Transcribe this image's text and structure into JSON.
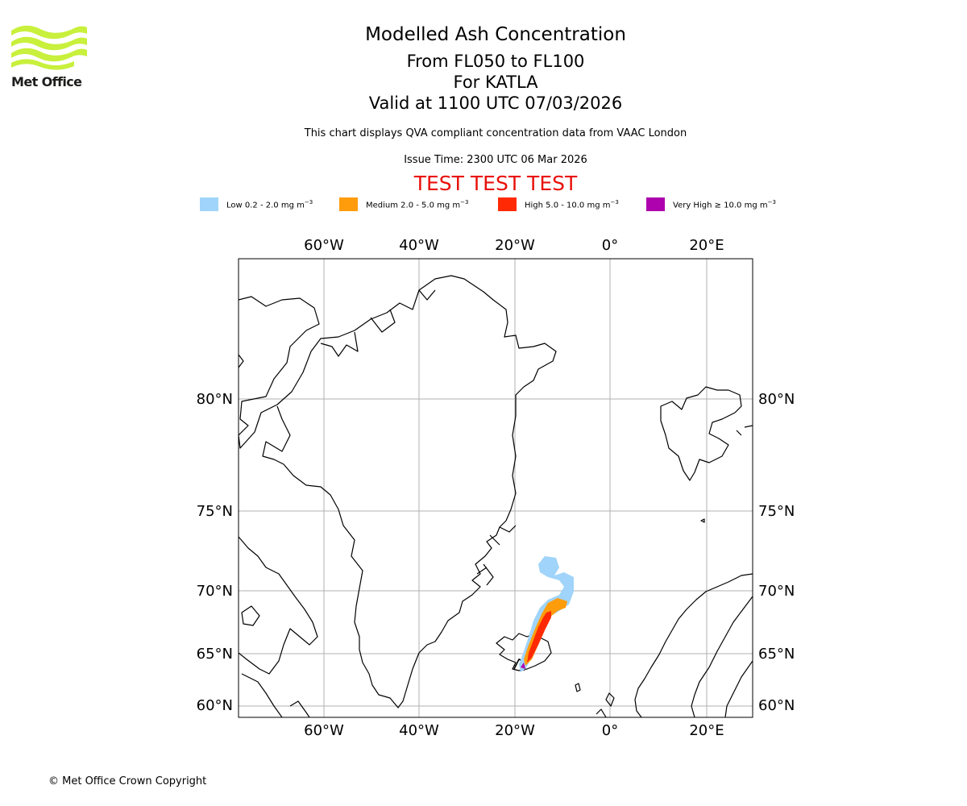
{
  "logo": {
    "text": "Met Office",
    "color": "#c8f03c"
  },
  "title": {
    "main": "Modelled Ash Concentration",
    "levels": "From FL050 to FL100",
    "volcano": "For KATLA",
    "valid": "Valid at 1100 UTC 07/03/2026"
  },
  "description": "This chart displays QVA compliant concentration data from VAAC London",
  "issue_time": "Issue Time: 2300 UTC 06 Mar 2026",
  "test_banner": "TEST TEST TEST",
  "legend": [
    {
      "label": "Low 0.2 - 2.0 mg m",
      "sup": "−3",
      "color": "#a0d4fa"
    },
    {
      "label": "Medium 2.0 - 5.0 mg m",
      "sup": "−3",
      "color": "#ff9c0c"
    },
    {
      "label": "High 5.0 - 10.0 mg m",
      "sup": "−3",
      "color": "#ff2a04"
    },
    {
      "label": "Very High ≥ 10.0 mg m",
      "sup": "−3",
      "color": "#ad02ad"
    }
  ],
  "map": {
    "lon_labels": [
      "60°W",
      "40°W",
      "20°W",
      "0°",
      "20°E"
    ],
    "lat_labels": [
      "80°N",
      "75°N",
      "70°N",
      "65°N",
      "60°N"
    ],
    "gridline_color": "#b0b0b0",
    "coast_color": "#000000"
  },
  "copyright": "© Met Office Crown Copyright"
}
